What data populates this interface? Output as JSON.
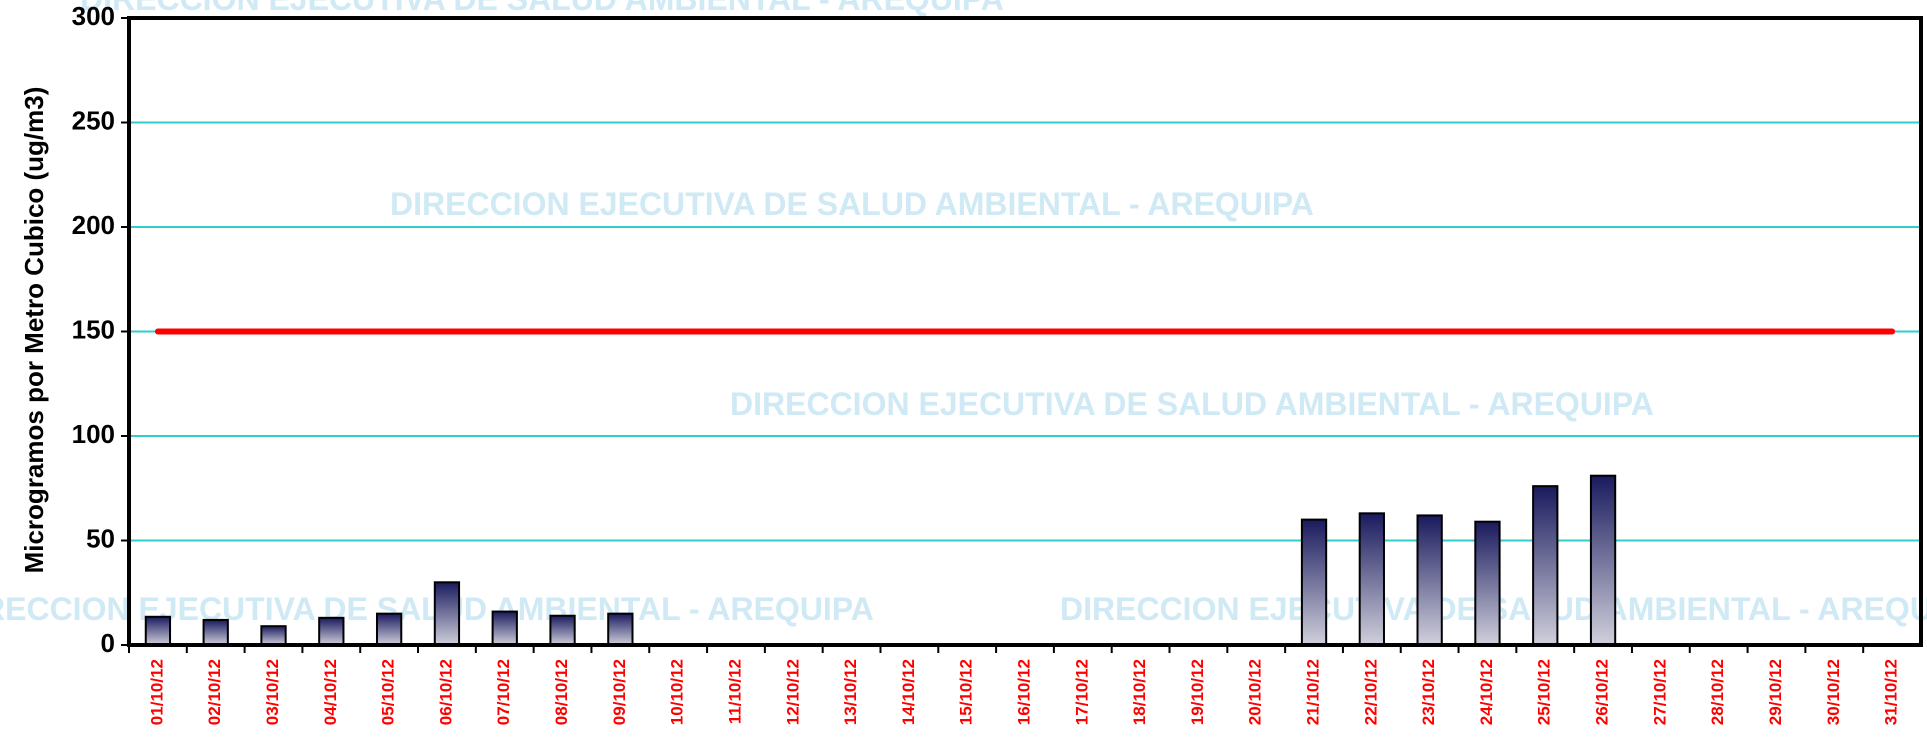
{
  "chart_data": {
    "type": "bar",
    "watermark": "DIRECCION EJECUTIVA DE SALUD AMBIENTAL - AREQUIPA",
    "y_label": "Microgramos por Metro Cubico (ug/m3)",
    "categories": [
      "01/10/12",
      "02/10/12",
      "03/10/12",
      "04/10/12",
      "05/10/12",
      "06/10/12",
      "07/10/12",
      "08/10/12",
      "09/10/12",
      "10/10/12",
      "11/10/12",
      "12/10/12",
      "13/10/12",
      "14/10/12",
      "15/10/12",
      "16/10/12",
      "17/10/12",
      "18/10/12",
      "19/10/12",
      "20/10/12",
      "21/10/12",
      "22/10/12",
      "23/10/12",
      "24/10/12",
      "25/10/12",
      "26/10/12",
      "27/10/12",
      "28/10/12",
      "29/10/12",
      "30/10/12",
      "31/10/12"
    ],
    "values": [
      13.5,
      12,
      9,
      13,
      15,
      30,
      16,
      14,
      15,
      null,
      null,
      null,
      null,
      null,
      null,
      null,
      null,
      null,
      null,
      null,
      60,
      63,
      62,
      59,
      76,
      81,
      null,
      null,
      null,
      null,
      null
    ],
    "color": "#1a1a5e",
    "reference_line": {
      "value": 150,
      "color": "#ff0000"
    },
    "ylim": [
      0,
      300
    ],
    "yticks": [
      0,
      50,
      100,
      150,
      200,
      250,
      300
    ],
    "grid": true,
    "grid_color": "#33cccc",
    "xtick_color": "#ff0000"
  }
}
